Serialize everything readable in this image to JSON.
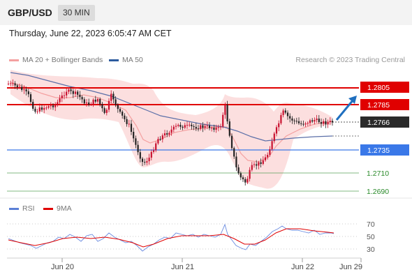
{
  "header": {
    "symbol": "GBP/USD",
    "timeframe": "30 MIN",
    "datetime": "Thursday, June 22, 2023 6:05:47 AM CET"
  },
  "legend": {
    "ma_label": "MA 20 + Bollinger Bands",
    "ma50_label": "MA 50",
    "credit": "Research © 2023 Trading Central",
    "rsi_label": "RSI",
    "rsi_ma_label": "9MA"
  },
  "colors": {
    "ma20": "#f4a0a0",
    "ma50": "#2c5b9e",
    "resistance": "#e00000",
    "support": "#3a78e8",
    "target": "#2a8a2a",
    "arrow": "#1f6fbf",
    "last_price_bg": "#2a2a2a",
    "candle_up": "#c8102e",
    "candle_down": "#222222"
  },
  "levels": [
    {
      "value": "1.2805",
      "kind": "resistance"
    },
    {
      "value": "1.2785",
      "kind": "resistance"
    },
    {
      "value": "1.2766",
      "kind": "last"
    },
    {
      "value": "1.2735",
      "kind": "support"
    },
    {
      "value": "1.2710",
      "kind": "target"
    },
    {
      "value": "1.2690",
      "kind": "target"
    }
  ],
  "rsi_axis": [
    "70",
    "50",
    "30"
  ],
  "x_axis": [
    "Jun 20",
    "Jun 21",
    "Jun 22",
    "Jun 29"
  ]
}
